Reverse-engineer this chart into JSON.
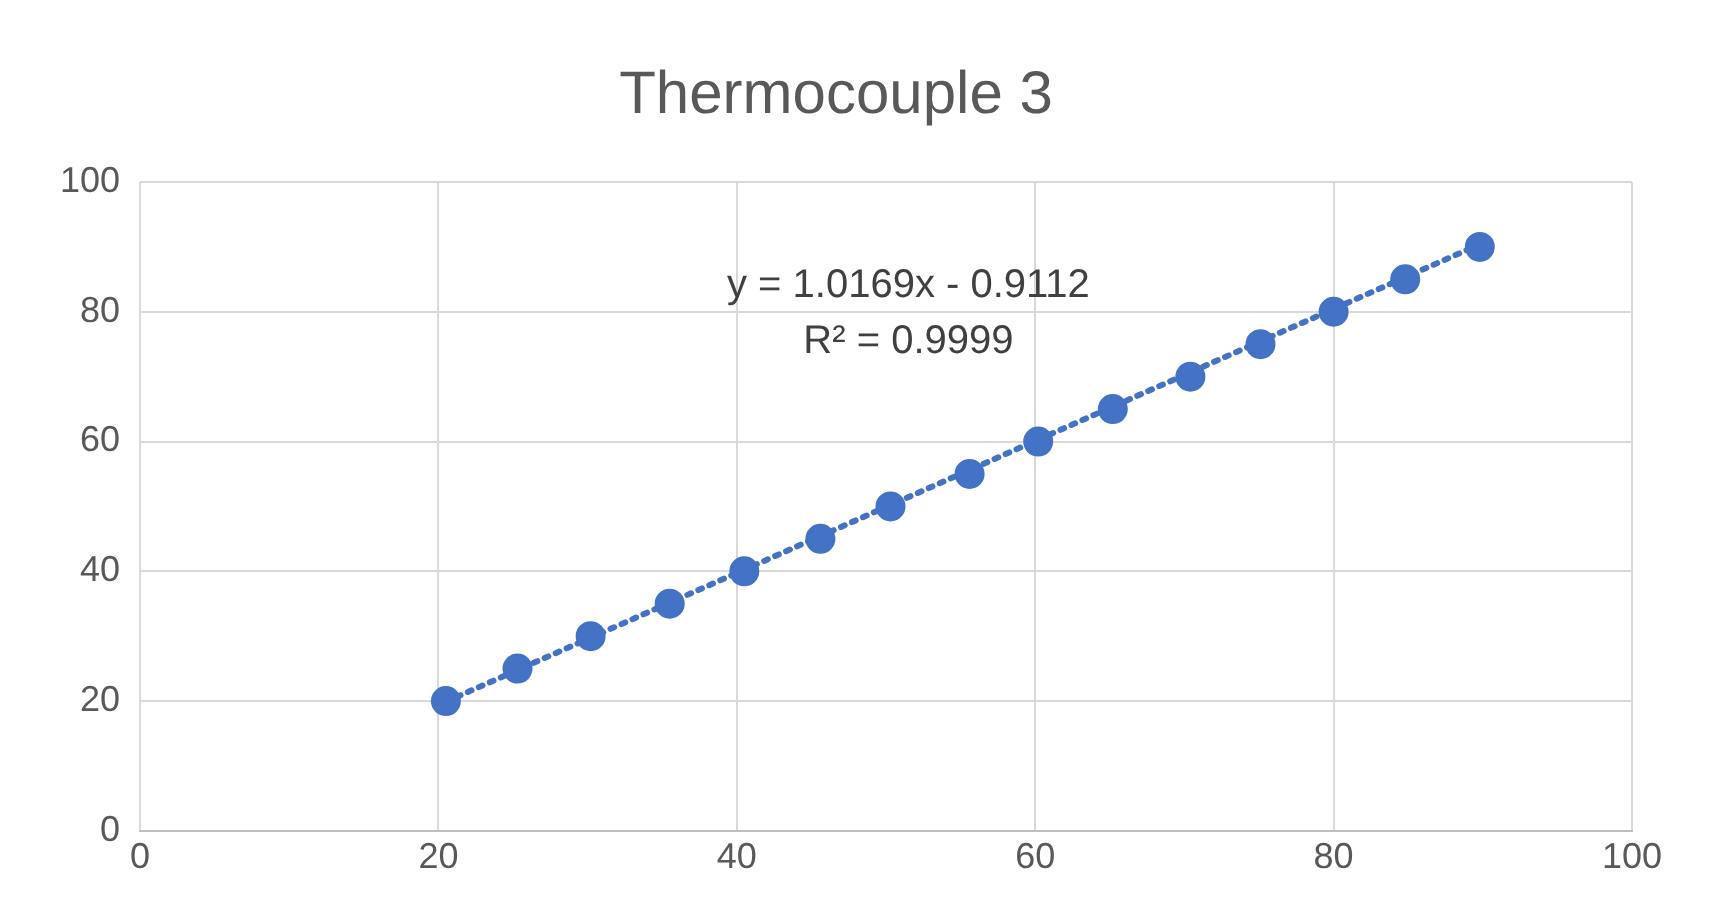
{
  "chart_data": {
    "type": "scatter",
    "title": "Thermocouple 3",
    "x": [
      20.5,
      25.3,
      30.2,
      35.5,
      40.5,
      45.6,
      50.3,
      55.6,
      60.2,
      65.2,
      70.4,
      75.1,
      80.0,
      84.8,
      89.8
    ],
    "series": [
      {
        "type": "scatter",
        "color": "#4472c4",
        "marker": "circle",
        "values": [
          20,
          25,
          30,
          35,
          40,
          45,
          50,
          55,
          60,
          65,
          70,
          75,
          80,
          85,
          90
        ]
      },
      {
        "type": "line",
        "color": "#4472c4",
        "marker": "none",
        "line_style": "dotted",
        "x": [
          20.5,
          89.8
        ],
        "values": [
          19.9,
          90.4
        ]
      }
    ],
    "xlim": [
      0,
      100
    ],
    "xticks": [
      0,
      20,
      40,
      60,
      80,
      100
    ],
    "ylim": [
      0,
      100
    ],
    "yticks": [
      0,
      20,
      40,
      60,
      80,
      100
    ],
    "grid": true,
    "legend": false,
    "annotations": [
      "y = 1.0169x - 0.9112",
      "R² = 0.9999"
    ]
  }
}
